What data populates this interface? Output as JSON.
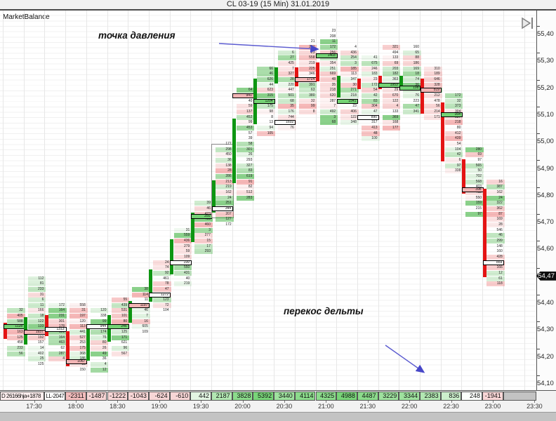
{
  "title": "CL 03-19 (15 Min)  31.01.2019",
  "indicator_label": "MarketBalance",
  "annotations": {
    "pressure_point": "точка давления",
    "delta_skew": "перекос дельты"
  },
  "price_axis": {
    "ticks": [
      "55,40",
      "55,30",
      "55,20",
      "55,10",
      "55,00",
      "54,90",
      "54,80",
      "54,70",
      "54,60",
      "54,50",
      "54,40",
      "54,30",
      "54,20",
      "54,10"
    ],
    "current_price": "54,47"
  },
  "time_axis": [
    "17:30",
    "18:00",
    "18:30",
    "19:00",
    "19:30",
    "20:00",
    "20:30",
    "21:00",
    "21:30",
    "22:00",
    "22:30",
    "23:00",
    "23:30"
  ],
  "delta_row": {
    "left_labels": [
      "D 26166hja+1878",
      "LL-2047"
    ],
    "values": [
      -2311,
      -1487,
      -1222,
      -1043,
      -624,
      -610,
      442,
      2187,
      3828,
      5392,
      3440,
      4114,
      4325,
      4988,
      4487,
      3229,
      3344,
      2383,
      836,
      248,
      -1941
    ]
  },
  "colors": {
    "up_body": "#0e9612",
    "down_body": "#e41414",
    "arrow": "#5353cc",
    "badge_bg": "#0d0d0d",
    "delta_positive": "#8fdc8f",
    "delta_negative": "#f6c9c9",
    "poc_green": "#74d274",
    "poc_pink": "#f2b4b4",
    "poc_white": "#fafafa"
  },
  "chart_data": {
    "type": "footprint-candlestick",
    "symbol": "CL 03-19",
    "timeframe": "15 Min",
    "date": "31.01.2019",
    "ylim": [
      54.05,
      55.45
    ],
    "price_step": 0.02,
    "grid": true,
    "note": "per-price cluster volume digits are sub-pixel in source; rendered procedurally",
    "candles": [
      {
        "t": "17:15",
        "o": 54.29,
        "h": 54.33,
        "l": 54.17,
        "c": 54.24,
        "poc": 54.28,
        "delta": null,
        "dir": "down",
        "poc_fill": "green"
      },
      {
        "t": "17:30",
        "o": 54.22,
        "h": 54.45,
        "l": 54.13,
        "c": 54.31,
        "poc": 54.26,
        "delta": null,
        "dir": "up",
        "poc_fill": "pink"
      },
      {
        "t": "17:45",
        "o": 54.32,
        "h": 54.36,
        "l": 54.15,
        "c": 54.25,
        "poc": 54.27,
        "delta": null,
        "dir": "down",
        "poc_fill": "white"
      },
      {
        "t": "18:00",
        "o": 54.26,
        "h": 54.35,
        "l": 54.11,
        "c": 54.14,
        "poc": 54.15,
        "delta": -2311,
        "dir": "down",
        "poc_fill": "pink"
      },
      {
        "t": "18:15",
        "o": 54.16,
        "h": 54.34,
        "l": 54.12,
        "c": 54.28,
        "poc": 54.28,
        "delta": -1487,
        "dir": "up",
        "poc_fill": "white"
      },
      {
        "t": "18:30",
        "o": 54.23,
        "h": 54.37,
        "l": 54.18,
        "c": 54.32,
        "poc": 54.28,
        "delta": -1222,
        "dir": "up",
        "poc_fill": "green"
      },
      {
        "t": "18:45",
        "o": 54.3,
        "h": 54.41,
        "l": 54.25,
        "c": 54.37,
        "poc": 54.36,
        "delta": -1043,
        "dir": "up",
        "poc_fill": "pink"
      },
      {
        "t": "19:00",
        "o": 54.38,
        "h": 54.52,
        "l": 54.34,
        "c": 54.49,
        "poc": 54.4,
        "delta": -624,
        "dir": "up",
        "poc_fill": "white"
      },
      {
        "t": "19:15",
        "o": 54.48,
        "h": 54.63,
        "l": 54.44,
        "c": 54.6,
        "poc": 54.52,
        "delta": -610,
        "dir": "up",
        "poc_fill": "white"
      },
      {
        "t": "19:30",
        "o": 54.6,
        "h": 54.73,
        "l": 54.55,
        "c": 54.7,
        "poc": 54.69,
        "delta": 442,
        "dir": "up",
        "poc_fill": "green"
      },
      {
        "t": "19:45",
        "o": 54.71,
        "h": 54.95,
        "l": 54.66,
        "c": 54.82,
        "poc": 54.72,
        "delta": 2187,
        "dir": "up",
        "poc_fill": "white",
        "range_box": [
          54.95,
          54.7
        ]
      },
      {
        "t": "20:00",
        "o": 54.82,
        "h": 55.15,
        "l": 54.76,
        "c": 55.05,
        "poc": 55.14,
        "delta": 3828,
        "dir": "up",
        "poc_fill": "pink"
      },
      {
        "t": "20:15",
        "o": 55.04,
        "h": 55.24,
        "l": 54.99,
        "c": 55.2,
        "poc": 55.12,
        "delta": 5392,
        "dir": "up",
        "poc_fill": "green"
      },
      {
        "t": "20:30",
        "o": 55.19,
        "h": 55.3,
        "l": 55.02,
        "c": 55.24,
        "poc": 55.04,
        "delta": 3440,
        "dir": "up",
        "poc_fill": "white"
      },
      {
        "t": "20:45",
        "o": 55.24,
        "h": 55.33,
        "l": 55.08,
        "c": 55.18,
        "poc": 55.2,
        "delta": 4114,
        "dir": "down",
        "poc_fill": "pink"
      },
      {
        "t": "21:00",
        "o": 55.26,
        "h": 55.38,
        "l": 55.04,
        "c": 55.2,
        "poc": 55.29,
        "delta": 4325,
        "dir": "down",
        "poc_fill": "green"
      },
      {
        "t": "21:15",
        "o": 55.14,
        "h": 55.31,
        "l": 55.04,
        "c": 55.21,
        "poc": 55.12,
        "delta": 4988,
        "dir": "up",
        "poc_fill": "green"
      },
      {
        "t": "21:30",
        "o": 55.2,
        "h": 55.27,
        "l": 54.97,
        "c": 55.17,
        "poc": 55.06,
        "delta": 4487,
        "dir": "down",
        "poc_fill": "white"
      },
      {
        "t": "21:45",
        "o": 55.21,
        "h": 55.31,
        "l": 55.02,
        "c": 55.17,
        "poc": 55.18,
        "delta": 3229,
        "dir": "down",
        "poc_fill": "green"
      },
      {
        "t": "22:00",
        "o": 55.17,
        "h": 55.32,
        "l": 55.08,
        "c": 55.21,
        "poc": 55.17,
        "delta": 3344,
        "dir": "up",
        "poc_fill": "green"
      },
      {
        "t": "22:15",
        "o": 55.2,
        "h": 55.23,
        "l": 55.05,
        "c": 55.08,
        "poc": 55.16,
        "delta": 2383,
        "dir": "down",
        "poc_fill": "pink"
      },
      {
        "t": "22:30",
        "o": 55.11,
        "h": 55.13,
        "l": 54.86,
        "c": 54.9,
        "poc": 55.07,
        "delta": 836,
        "dir": "down",
        "poc_fill": "green"
      },
      {
        "t": "22:45",
        "o": 54.9,
        "h": 54.93,
        "l": 54.7,
        "c": 54.78,
        "poc": 54.79,
        "delta": 248,
        "dir": "down",
        "poc_fill": "pink"
      },
      {
        "t": "23:00",
        "o": 54.79,
        "h": 54.82,
        "l": 54.43,
        "c": 54.47,
        "poc": 54.52,
        "delta": -1941,
        "dir": "down",
        "poc_fill": "white"
      }
    ]
  }
}
